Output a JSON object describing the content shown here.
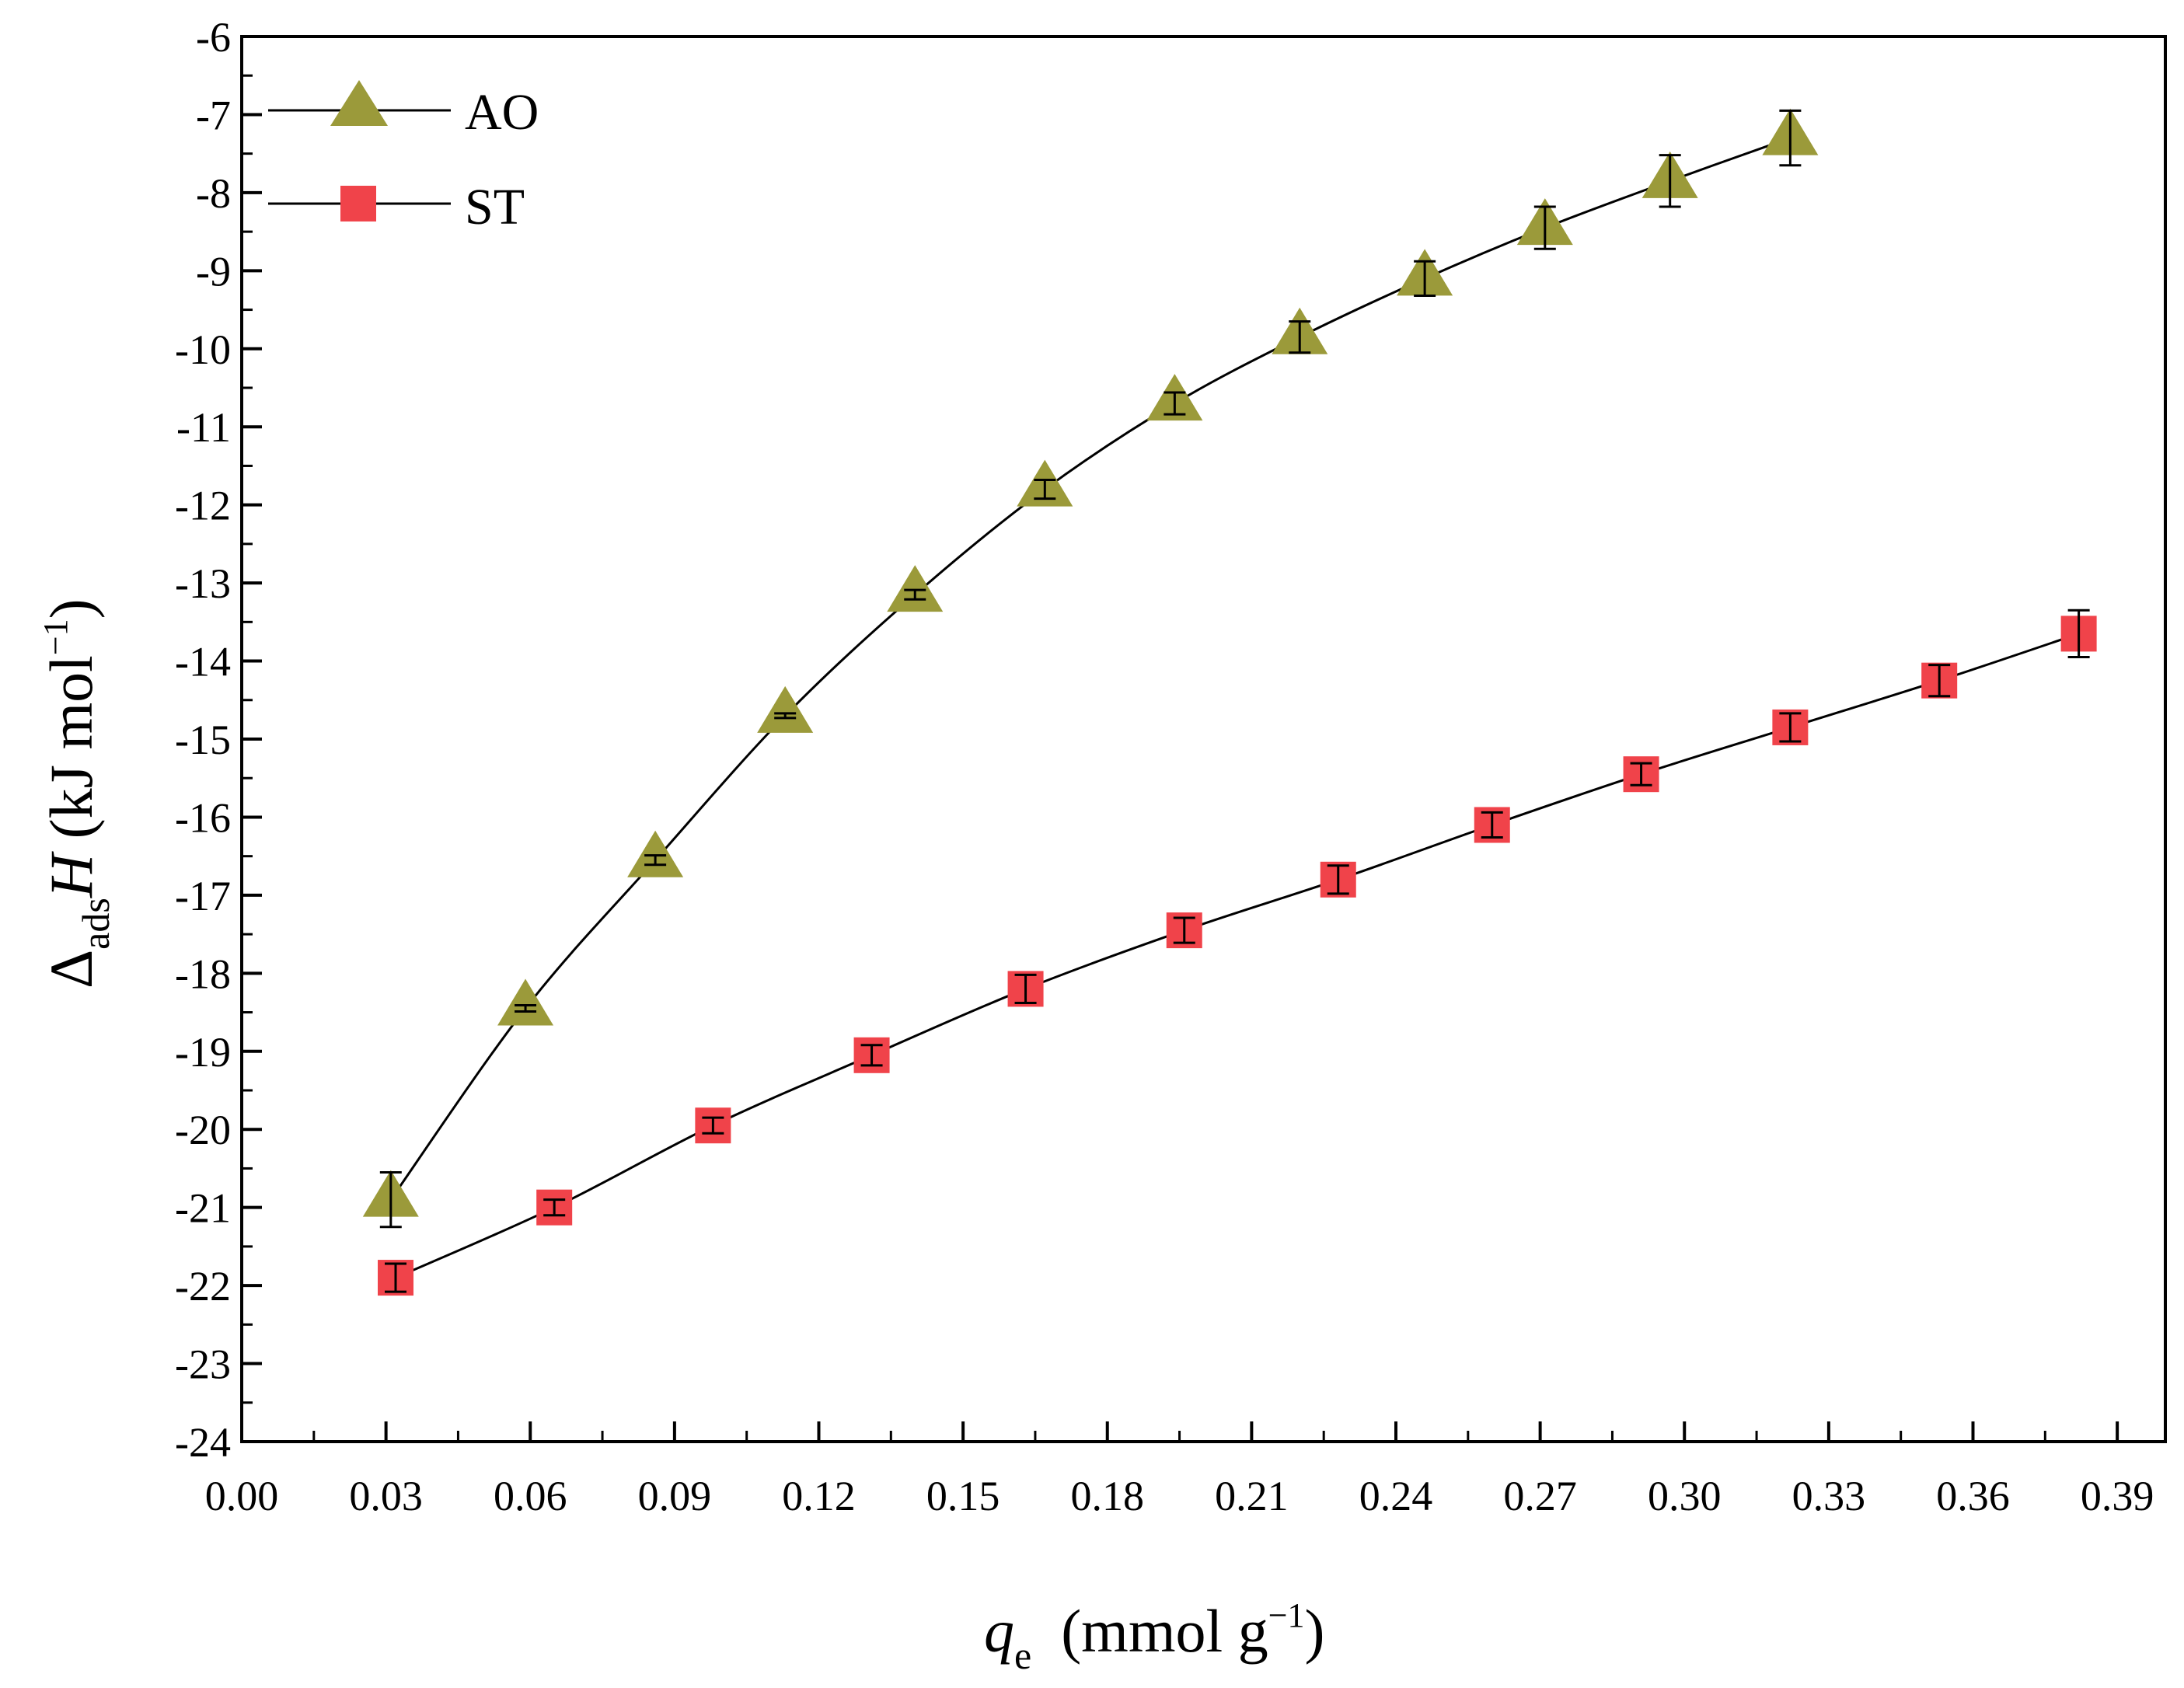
{
  "chart_data": {
    "type": "line",
    "title": "",
    "xlabel": {
      "main": "q",
      "sub": "e",
      "units": "(mmol g",
      "sup": "−1",
      "close": ")"
    },
    "ylabel": {
      "delta": "Δ",
      "sub": "ads",
      "var": "H",
      "units": " (kJ mol",
      "sup": "−1",
      "close": ")"
    },
    "xlim": [
      0.0,
      0.4
    ],
    "ylim": [
      -24,
      -6
    ],
    "xticks": [
      "0.00",
      "0.03",
      "0.06",
      "0.09",
      "0.12",
      "0.15",
      "0.18",
      "0.21",
      "0.24",
      "0.27",
      "0.30",
      "0.33",
      "0.36",
      "0.39"
    ],
    "yticks": [
      "-6",
      "-7",
      "-8",
      "-9",
      "-10",
      "-11",
      "-12",
      "-13",
      "-14",
      "-15",
      "-16",
      "-17",
      "-18",
      "-19",
      "-20",
      "-21",
      "-22",
      "-23",
      "-24"
    ],
    "legend_position": "top-left",
    "series": [
      {
        "name": "AO",
        "marker": "triangle",
        "color": "#9b9a3a",
        "x": [
          0.031,
          0.059,
          0.086,
          0.113,
          0.14,
          0.167,
          0.194,
          0.22,
          0.246,
          0.271,
          0.297,
          0.322
        ],
        "y": [
          -20.9,
          -18.45,
          -16.55,
          -14.7,
          -13.15,
          -11.8,
          -10.7,
          -9.85,
          -9.1,
          -8.45,
          -7.85,
          -7.3
        ],
        "err": [
          0.35,
          0.04,
          0.06,
          0.03,
          0.06,
          0.12,
          0.14,
          0.2,
          0.22,
          0.27,
          0.33,
          0.35
        ]
      },
      {
        "name": "ST",
        "marker": "square",
        "color": "#f0434a",
        "x": [
          0.032,
          0.065,
          0.098,
          0.131,
          0.163,
          0.196,
          0.228,
          0.26,
          0.291,
          0.322,
          0.353,
          0.382
        ],
        "y": [
          -21.9,
          -21.0,
          -19.95,
          -19.05,
          -18.2,
          -17.45,
          -16.8,
          -16.1,
          -15.45,
          -14.85,
          -14.25,
          -13.65
        ],
        "err": [
          0.18,
          0.1,
          0.1,
          0.13,
          0.18,
          0.16,
          0.18,
          0.16,
          0.14,
          0.18,
          0.2,
          0.3
        ]
      }
    ]
  }
}
